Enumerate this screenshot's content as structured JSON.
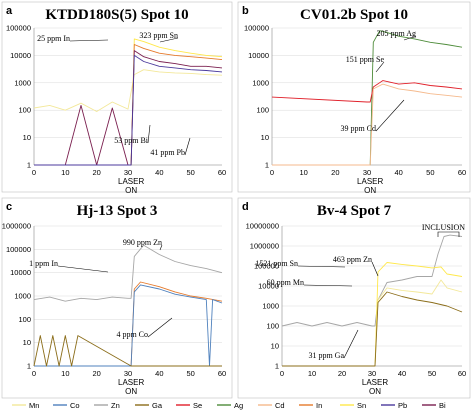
{
  "colors": {
    "Mn": "#f3e89a",
    "Co": "#4f81bd",
    "Zn": "#a6a6a6",
    "Ga": "#8b6d1a",
    "Se": "#e0202a",
    "Ag": "#4e8c3a",
    "Cd": "#f5b98c",
    "In": "#e57a2c",
    "Sn": "#ffe84a",
    "Pb": "#4b3a9c",
    "Bi": "#7a1f4f"
  },
  "legend": {
    "items": [
      "Mn",
      "Co",
      "Zn",
      "Ga",
      "Se",
      "Ag",
      "Cd",
      "In",
      "Sn",
      "Pb",
      "Bi"
    ]
  },
  "chart_data": [
    {
      "panel": "a",
      "title": "KTDD180S(5) Spot 10",
      "type": "line",
      "y_scale": "log",
      "ylim": [
        1,
        100000
      ],
      "y_ticks": [
        "1",
        "10",
        "100",
        "1000",
        "10000",
        "100000"
      ],
      "xlim": [
        0,
        60
      ],
      "x_ticks": [
        "0",
        "10",
        "20",
        "30",
        "40",
        "50",
        "60"
      ],
      "xlabel_lines": [
        "LASER",
        "ON"
      ],
      "laser_on_x": 31,
      "series": [
        {
          "name": "Mn",
          "x": [
            0,
            5,
            10,
            15,
            20,
            25,
            30,
            32,
            35,
            40,
            45,
            50,
            55,
            60
          ],
          "values": [
            120,
            150,
            100,
            180,
            90,
            200,
            110,
            2000,
            3000,
            2500,
            2300,
            2200,
            2000,
            1900
          ]
        },
        {
          "name": "Sn",
          "x": [
            0,
            30,
            31,
            32,
            35,
            40,
            45,
            50,
            55,
            60
          ],
          "values": [
            1,
            1,
            1,
            40000,
            32000,
            20000,
            15000,
            12000,
            10000,
            9000
          ]
        },
        {
          "name": "In",
          "x": [
            0,
            30,
            31,
            32,
            35,
            40,
            45,
            50,
            55,
            60
          ],
          "values": [
            1,
            1,
            1,
            25000,
            18000,
            12000,
            10000,
            9000,
            8000,
            7000
          ]
        },
        {
          "name": "Bi",
          "x": [
            0,
            10,
            15,
            20,
            25,
            30,
            31,
            32,
            35,
            40,
            45,
            50,
            55,
            60
          ],
          "values": [
            1,
            1,
            150,
            1,
            120,
            1,
            1,
            15000,
            9000,
            6000,
            5000,
            4000,
            4000,
            3500
          ]
        },
        {
          "name": "Pb",
          "x": [
            0,
            30,
            31,
            32,
            35,
            40,
            45,
            50,
            55,
            60
          ],
          "values": [
            1,
            1,
            1,
            10000,
            6000,
            4000,
            3500,
            3000,
            2800,
            2500
          ]
        }
      ],
      "annotations": [
        "25 ppm In",
        "323 ppm Sn",
        "53 ppm Bi",
        "41 ppm Pb"
      ]
    },
    {
      "panel": "b",
      "title": "CV01.2b Spot 10",
      "type": "line",
      "y_scale": "log",
      "ylim": [
        1,
        100000
      ],
      "y_ticks": [
        "1",
        "10",
        "100",
        "1000",
        "10000",
        "100000"
      ],
      "xlim": [
        0,
        60
      ],
      "x_ticks": [
        "0",
        "10",
        "20",
        "30",
        "40",
        "50",
        "60"
      ],
      "xlabel_lines": [
        "LASER",
        "ON"
      ],
      "laser_on_x": 31,
      "series": [
        {
          "name": "Ag",
          "x": [
            0,
            31,
            32,
            34,
            36,
            40,
            45,
            50,
            55,
            60
          ],
          "values": [
            1,
            1,
            30000,
            80000,
            70000,
            50000,
            40000,
            30000,
            25000,
            20000
          ]
        },
        {
          "name": "Se",
          "x": [
            0,
            30,
            31,
            32,
            35,
            40,
            45,
            50,
            55,
            60
          ],
          "values": [
            300,
            200,
            200,
            700,
            1200,
            900,
            1000,
            800,
            700,
            600
          ]
        },
        {
          "name": "Cd",
          "x": [
            0,
            31,
            32,
            35,
            40,
            45,
            50,
            55,
            60
          ],
          "values": [
            1,
            1,
            600,
            900,
            600,
            500,
            400,
            350,
            300
          ]
        }
      ],
      "annotations": [
        "205 ppm Ag",
        "151 ppm Se",
        "39 ppm Cd"
      ]
    },
    {
      "panel": "c",
      "title": "Hj-13 Spot 3",
      "type": "line",
      "y_scale": "log",
      "ylim": [
        1,
        1000000
      ],
      "y_ticks": [
        "1",
        "10",
        "100",
        "1000",
        "10000",
        "100000",
        "1000000"
      ],
      "xlim": [
        0,
        60
      ],
      "x_ticks": [
        "0",
        "10",
        "20",
        "30",
        "40",
        "50",
        "60"
      ],
      "xlabel_lines": [
        "LASER",
        "ON"
      ],
      "laser_on_x": 31,
      "series": [
        {
          "name": "Zn",
          "x": [
            0,
            5,
            10,
            15,
            20,
            25,
            30,
            31,
            32,
            35,
            40,
            45,
            50,
            55,
            60
          ],
          "values": [
            700,
            900,
            600,
            800,
            700,
            900,
            800,
            800,
            50000,
            150000,
            60000,
            30000,
            20000,
            15000,
            10000
          ]
        },
        {
          "name": "In",
          "x": [
            0,
            31,
            32,
            34,
            40,
            45,
            50,
            55,
            60
          ],
          "values": [
            1,
            1,
            2000,
            4000,
            2500,
            1500,
            1000,
            800,
            600
          ]
        },
        {
          "name": "Co",
          "x": [
            0,
            31,
            32,
            34,
            40,
            45,
            50,
            55,
            56,
            57,
            60
          ],
          "values": [
            1,
            1,
            1500,
            3000,
            2000,
            1200,
            900,
            700,
            1,
            700,
            500
          ]
        },
        {
          "name": "Ga",
          "x": [
            0,
            2,
            4,
            6,
            8,
            10,
            12,
            14,
            31,
            60
          ],
          "values": [
            1,
            20,
            1,
            20,
            1,
            20,
            1,
            20,
            1,
            1
          ]
        }
      ],
      "annotations": [
        "990 ppm Zn",
        "1 ppm In",
        "4 ppm Co"
      ]
    },
    {
      "panel": "d",
      "title": "Bv-4 Spot 7",
      "type": "line",
      "y_scale": "log",
      "ylim": [
        1,
        10000000
      ],
      "y_ticks": [
        "1",
        "10",
        "100",
        "1000",
        "10000",
        "100000",
        "1000000",
        "10000000"
      ],
      "xlim": [
        0,
        60
      ],
      "x_ticks": [
        "0",
        "10",
        "20",
        "30",
        "40",
        "50",
        "60"
      ],
      "xlabel_lines": [
        "LASER",
        "ON"
      ],
      "laser_on_x": 31,
      "series": [
        {
          "name": "Zn",
          "x": [
            0,
            5,
            10,
            15,
            20,
            25,
            30,
            31,
            32,
            35,
            40,
            45,
            50,
            52,
            54,
            56,
            60
          ],
          "values": [
            100,
            150,
            100,
            150,
            100,
            150,
            100,
            100,
            2000,
            15000,
            20000,
            30000,
            30000,
            400000,
            3000000,
            3500000,
            3000000
          ]
        },
        {
          "name": "Sn",
          "x": [
            0,
            31,
            32,
            35,
            40,
            45,
            50,
            53,
            55,
            60
          ],
          "values": [
            1,
            1,
            50000,
            150000,
            120000,
            100000,
            80000,
            90000,
            40000,
            30000
          ]
        },
        {
          "name": "Mn",
          "x": [
            0,
            31,
            32,
            35,
            40,
            45,
            50,
            53,
            55,
            60
          ],
          "values": [
            1,
            1,
            2000,
            8000,
            6000,
            5000,
            4000,
            20000,
            8000,
            5000
          ]
        },
        {
          "name": "Ga",
          "x": [
            0,
            31,
            32,
            35,
            40,
            45,
            50,
            55,
            60
          ],
          "values": [
            1,
            1,
            1500,
            5000,
            3000,
            2000,
            1500,
            1000,
            500
          ]
        }
      ],
      "annotations": [
        "1521 ppm Sn",
        "463 ppm Zn",
        "60 ppm Mn",
        "31 ppm Ga"
      ],
      "bracket_label": "INCLUSION"
    }
  ]
}
